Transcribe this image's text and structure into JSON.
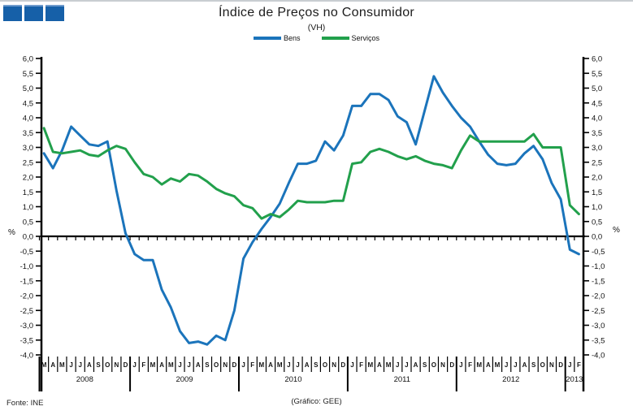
{
  "window": {
    "title": "Índice de Preços no Consumidor"
  },
  "logo": {
    "name": "gee-logo",
    "squares": 3,
    "color": "#1660a8"
  },
  "title": "Índice de Preços no Consumidor",
  "subtitle": "(VH)",
  "legend": [
    {
      "label": "Bens",
      "color": "#1b74bb"
    },
    {
      "label": "Serviços",
      "color": "#22a04c"
    }
  ],
  "footer": {
    "source": "Fonte: INE",
    "credit": "(Gráfico:  GEE)"
  },
  "chart_data": {
    "type": "line",
    "title": "Índice de Preços no Consumidor",
    "subtitle": "(VH)",
    "ylabel": "%",
    "unit_label": "%",
    "ylim": [
      -4.0,
      6.0
    ],
    "ytick_step": 0.5,
    "yticks": [
      "6,0",
      "5,5",
      "5,0",
      "4,5",
      "4,0",
      "3,5",
      "3,0",
      "2,5",
      "2,0",
      "1,5",
      "1,0",
      "0,5",
      "0,0",
      "-0,5",
      "-1,0",
      "-1,5",
      "-2,0",
      "-2,5",
      "-3,0",
      "-3,5",
      "-4,0"
    ],
    "grid": false,
    "legend_position": "top-center",
    "x_start": "Mar 2008",
    "x_end": "Feb 2013",
    "month_letters": [
      "M",
      "A",
      "M",
      "J",
      "J",
      "A",
      "S",
      "O",
      "N",
      "D",
      "J",
      "F",
      "M",
      "A",
      "M",
      "J",
      "J",
      "A",
      "S",
      "O",
      "N",
      "D",
      "J",
      "F",
      "M",
      "A",
      "M",
      "J",
      "J",
      "A",
      "S",
      "O",
      "N",
      "D",
      "J",
      "F",
      "M",
      "A",
      "M",
      "J",
      "J",
      "A",
      "S",
      "O",
      "N",
      "D",
      "J",
      "F",
      "M",
      "A",
      "M",
      "J",
      "J",
      "A",
      "S",
      "O",
      "N",
      "D",
      "J",
      "F"
    ],
    "years": [
      {
        "label": "2008",
        "months": 10
      },
      {
        "label": "2009",
        "months": 12
      },
      {
        "label": "2010",
        "months": 12
      },
      {
        "label": "2011",
        "months": 12
      },
      {
        "label": "2012",
        "months": 12
      },
      {
        "label": "2013",
        "months": 2
      }
    ],
    "series": [
      {
        "name": "Bens",
        "color": "#1b74bb",
        "values": [
          2.8,
          2.3,
          2.9,
          3.7,
          3.4,
          3.1,
          3.05,
          3.2,
          1.55,
          0.1,
          -0.6,
          -0.8,
          -0.8,
          -1.8,
          -2.4,
          -3.2,
          -3.6,
          -3.55,
          -3.65,
          -3.35,
          -3.5,
          -2.5,
          -0.75,
          -0.2,
          0.25,
          0.65,
          1.1,
          1.8,
          2.45,
          2.45,
          2.55,
          3.2,
          2.9,
          3.4,
          4.4,
          4.4,
          4.8,
          4.8,
          4.6,
          4.05,
          3.85,
          3.1,
          4.25,
          5.4,
          4.85,
          4.4,
          4.0,
          3.7,
          3.2,
          2.75,
          2.45,
          2.4,
          2.45,
          2.8,
          3.05,
          2.6,
          1.8,
          1.25,
          -0.45,
          -0.6
        ]
      },
      {
        "name": "Serviços",
        "color": "#22a04c",
        "values": [
          3.65,
          2.85,
          2.8,
          2.85,
          2.9,
          2.75,
          2.7,
          2.9,
          3.05,
          2.95,
          2.5,
          2.1,
          2.0,
          1.75,
          1.95,
          1.85,
          2.1,
          2.05,
          1.85,
          1.6,
          1.45,
          1.35,
          1.05,
          0.95,
          0.6,
          0.75,
          0.65,
          0.9,
          1.2,
          1.15,
          1.15,
          1.15,
          1.2,
          1.2,
          2.45,
          2.5,
          2.85,
          2.95,
          2.85,
          2.7,
          2.6,
          2.7,
          2.55,
          2.45,
          2.4,
          2.3,
          2.9,
          3.4,
          3.2,
          3.2,
          3.2,
          3.2,
          3.2,
          3.2,
          3.45,
          3.0,
          3.0,
          3.0,
          1.05,
          0.75
        ]
      }
    ]
  }
}
